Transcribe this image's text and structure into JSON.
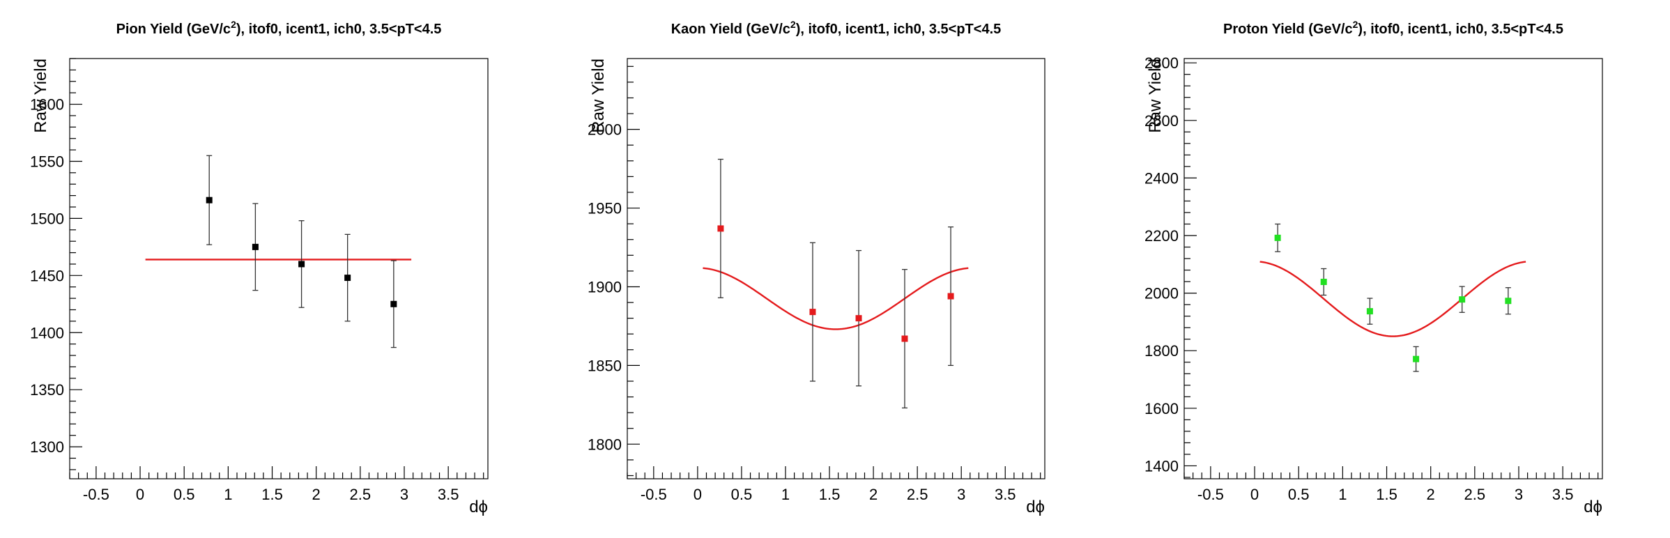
{
  "chart_data": [
    {
      "type": "scatter",
      "title_main": "Pion Yield (GeV/c",
      "title_sup": "2",
      "title_rest": "), itof0, icent1, ich0, 3.5<pT<4.5",
      "xlabel": "dϕ",
      "ylabel": "Raw Yield",
      "xlim": [
        -0.8,
        3.95
      ],
      "ylim": [
        1272,
        1640
      ],
      "x_major_ticks": [
        -0.5,
        0,
        0.5,
        1,
        1.5,
        2,
        2.5,
        3,
        3.5
      ],
      "x_tick_labels": [
        "-0.5",
        "0",
        "0.5",
        "1",
        "1.5",
        "2",
        "2.5",
        "3",
        "3.5"
      ],
      "y_major_ticks": [
        1300,
        1350,
        1400,
        1450,
        1500,
        1550,
        1600
      ],
      "y_tick_labels": [
        "1300",
        "1350",
        "1400",
        "1450",
        "1500",
        "1550",
        "1600"
      ],
      "series": [
        {
          "marker_color": "#000000",
          "x": [
            0.785,
            1.309,
            1.833,
            2.356,
            2.88
          ],
          "y": [
            1516,
            1475,
            1460,
            1448,
            1425
          ],
          "yerr": [
            39,
            38,
            38,
            38,
            38
          ]
        }
      ],
      "fit": {
        "color": "#e41a1c",
        "x_range": [
          0.06,
          3.08
        ],
        "constant": 1464,
        "amplitude": 0
      }
    },
    {
      "type": "scatter",
      "title_main": "Kaon Yield (GeV/c",
      "title_sup": "2",
      "title_rest": "), itof0, icent1, ich0, 3.5<pT<4.5",
      "xlabel": "dϕ",
      "ylabel": "Raw Yield",
      "xlim": [
        -0.8,
        3.95
      ],
      "ylim": [
        1778,
        2045
      ],
      "x_major_ticks": [
        -0.5,
        0,
        0.5,
        1,
        1.5,
        2,
        2.5,
        3,
        3.5
      ],
      "x_tick_labels": [
        "-0.5",
        "0",
        "0.5",
        "1",
        "1.5",
        "2",
        "2.5",
        "3",
        "3.5"
      ],
      "y_major_ticks": [
        1800,
        1850,
        1900,
        1950,
        2000
      ],
      "y_tick_labels": [
        "1800",
        "1850",
        "1900",
        "1950",
        "2000"
      ],
      "series": [
        {
          "marker_color": "#e41a1c",
          "x": [
            0.262,
            1.309,
            1.833,
            2.356,
            2.88
          ],
          "y": [
            1937,
            1884,
            1880,
            1867,
            1894
          ],
          "yerr": [
            44,
            44,
            43,
            44,
            44
          ]
        }
      ],
      "fit": {
        "color": "#e41a1c",
        "x_range": [
          0.06,
          3.08
        ],
        "constant": 1892.5,
        "amplitude": 19.5
      }
    },
    {
      "type": "scatter",
      "title_main": "Proton Yield (GeV/c",
      "title_sup": "2",
      "title_rest": "), itof0, icent1, ich0, 3.5<pT<4.5",
      "xlabel": "dϕ",
      "ylabel": "Raw Yield",
      "xlim": [
        -0.8,
        3.95
      ],
      "ylim": [
        1355,
        2815
      ],
      "x_major_ticks": [
        -0.5,
        0,
        0.5,
        1,
        1.5,
        2,
        2.5,
        3,
        3.5
      ],
      "x_tick_labels": [
        "-0.5",
        "0",
        "0.5",
        "1",
        "1.5",
        "2",
        "2.5",
        "3",
        "3.5"
      ],
      "y_major_ticks": [
        1400,
        1600,
        1800,
        2000,
        2200,
        2400,
        2600,
        2800
      ],
      "y_tick_labels": [
        "1400",
        "1600",
        "1800",
        "2000",
        "2200",
        "2400",
        "2600",
        "2800"
      ],
      "series": [
        {
          "marker_color": "#22e022",
          "x": [
            0.262,
            0.785,
            1.309,
            1.833,
            2.356,
            2.88
          ],
          "y": [
            2192,
            2039,
            1937,
            1771,
            1978,
            1973
          ],
          "yerr": [
            48,
            46,
            45,
            43,
            45,
            46
          ]
        }
      ],
      "fit": {
        "color": "#e41a1c",
        "x_range": [
          0.06,
          3.08
        ],
        "constant": 1980,
        "amplitude": 130
      }
    }
  ]
}
